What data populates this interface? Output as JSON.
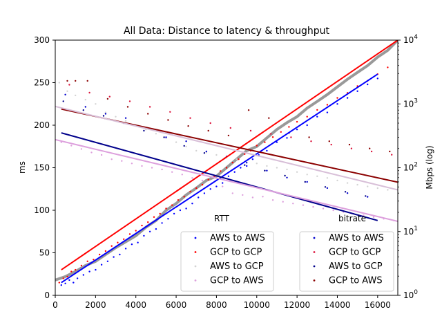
{
  "chart_data": {
    "type": "scatter",
    "title": "All Data: Distance to latency & throughput",
    "xlabel": "",
    "ylabel": "ms",
    "ylabel_right": "Mbps (log)",
    "xlim": [
      0,
      17000
    ],
    "ylim": [
      0,
      300
    ],
    "ylim_right": [
      1,
      10000
    ],
    "y_right_scale": "log",
    "x_ticks": [
      "0",
      "2000",
      "4000",
      "6000",
      "8000",
      "10000",
      "12000",
      "14000",
      "16000"
    ],
    "y_ticks": [
      "0",
      "50",
      "100",
      "150",
      "200",
      "250",
      "300"
    ],
    "y_right_ticks": [
      {
        "value": 1,
        "base": "10",
        "exp": "0"
      },
      {
        "value": 10,
        "base": "10",
        "exp": "1"
      },
      {
        "value": 100,
        "base": "10",
        "exp": "2"
      },
      {
        "value": 1000,
        "base": "10",
        "exp": "3"
      },
      {
        "value": 10000,
        "base": "10",
        "exp": "4"
      }
    ],
    "legends": [
      {
        "title": "RTT",
        "placement": "lower-center",
        "entries": [
          {
            "label": "AWS to AWS",
            "color": "#0000ff"
          },
          {
            "label": "GCP to GCP",
            "color": "#ff0000"
          },
          {
            "label": "AWS to GCP",
            "color": "#d3d3d3"
          },
          {
            "label": "GCP to AWS",
            "color": "#dda0dd"
          }
        ]
      },
      {
        "title": "bitrate",
        "placement": "lower-right",
        "entries": [
          {
            "label": "AWS to AWS",
            "color": "#0000cd"
          },
          {
            "label": "GCP to GCP",
            "color": "#dc143c"
          },
          {
            "label": "AWS to GCP",
            "color": "#00008b"
          },
          {
            "label": "GCP to AWS",
            "color": "#8b0000"
          }
        ]
      }
    ],
    "fit_lines": [
      {
        "color": "#0000ff",
        "axis": "left",
        "x": [
          300,
          16000
        ],
        "y": [
          15,
          260
        ]
      },
      {
        "color": "#ff0000",
        "axis": "left",
        "x": [
          300,
          17000
        ],
        "y": [
          30,
          300
        ]
      },
      {
        "color": "#00008b",
        "axis": "left",
        "x": [
          300,
          16000
        ],
        "y": [
          191,
          88
        ]
      },
      {
        "color": "#8b0000",
        "axis": "left",
        "x": [
          300,
          17000
        ],
        "y": [
          219,
          133
        ]
      },
      {
        "color": "#dda0dd",
        "axis": "left",
        "x": [
          0,
          17000
        ],
        "y": [
          183,
          87
        ]
      },
      {
        "color": "#d8bfd8",
        "axis": "left",
        "x": [
          0,
          17000
        ],
        "y": [
          222,
          124
        ]
      }
    ],
    "rtt_band": {
      "color": "#777777",
      "x": [
        0,
        500,
        1000,
        1500,
        2000,
        2500,
        3000,
        3500,
        4000,
        4500,
        5000,
        5500,
        6000,
        6500,
        7000,
        7500,
        8000,
        8500,
        9000,
        9500,
        10000,
        10500,
        11000,
        11500,
        12000,
        12500,
        13000,
        13500,
        14000,
        14500,
        15000,
        15500,
        16000,
        16500,
        17000
      ],
      "y": [
        18,
        22,
        28,
        35,
        40,
        48,
        56,
        63,
        70,
        80,
        88,
        100,
        108,
        118,
        126,
        135,
        140,
        150,
        160,
        170,
        175,
        185,
        195,
        203,
        210,
        220,
        228,
        236,
        245,
        254,
        262,
        270,
        280,
        288,
        300
      ]
    },
    "series": [
      {
        "name": "AWS to AWS",
        "kind": "rtt",
        "axis": "left",
        "color": "#0000ff",
        "x": [
          300,
          500,
          700,
          900,
          1100,
          1400,
          1700,
          2000,
          2300,
          2600,
          2900,
          3200,
          3500,
          3800,
          4100,
          4400,
          4700,
          5000,
          5300,
          5600,
          5900,
          6200,
          6500,
          6800,
          7100,
          7400,
          7700,
          8000,
          8300,
          8600,
          8900,
          9200,
          9500,
          9800,
          10100,
          10500,
          11000,
          11500,
          12000,
          12500,
          13000,
          13500,
          14000,
          14500,
          15000,
          15500,
          16000
        ],
        "y": [
          12,
          14,
          18,
          15,
          20,
          24,
          28,
          30,
          36,
          40,
          45,
          48,
          55,
          60,
          62,
          70,
          75,
          78,
          85,
          90,
          96,
          100,
          102,
          108,
          115,
          120,
          125,
          128,
          132,
          140,
          145,
          150,
          152,
          160,
          165,
          170,
          180,
          185,
          195,
          200,
          210,
          215,
          225,
          232,
          240,
          248,
          255
        ]
      },
      {
        "name": "GCP to GCP",
        "kind": "rtt",
        "axis": "left",
        "color": "#ff0000",
        "x": [
          200,
          400,
          600,
          800,
          1000,
          1300,
          1600,
          1900,
          2200,
          2500,
          2800,
          3100,
          3400,
          3700,
          4000,
          4300,
          4600,
          4900,
          5200,
          5500,
          5800,
          6100,
          6400,
          6700,
          7000,
          7300,
          7600,
          7900,
          8200,
          8500,
          8800,
          9100,
          9400,
          9700,
          10000,
          10400,
          10800,
          11200,
          11600,
          12000,
          12500,
          13000,
          13500,
          14000,
          14500,
          15000,
          15500,
          16000,
          16500
        ],
        "y": [
          15,
          20,
          22,
          28,
          30,
          35,
          40,
          42,
          48,
          52,
          58,
          62,
          66,
          72,
          76,
          82,
          86,
          92,
          96,
          102,
          106,
          112,
          116,
          122,
          126,
          130,
          136,
          140,
          146,
          150,
          156,
          160,
          166,
          170,
          176,
          180,
          186,
          192,
          198,
          204,
          210,
          218,
          224,
          232,
          238,
          246,
          252,
          260,
          268
        ]
      },
      {
        "name": "AWS to GCP",
        "kind": "rtt",
        "axis": "left",
        "color": "#d3d3d3",
        "x": [
          200,
          600,
          1000,
          1500,
          2000,
          2500,
          3000,
          3500,
          4000,
          4500,
          5000,
          5500,
          6000,
          6500,
          7000,
          7500,
          8000,
          8500,
          9000,
          9500,
          10000,
          10500,
          11000,
          11500,
          12000,
          12500,
          13000,
          13500,
          14000,
          14500,
          15000,
          15500,
          16000,
          16500
        ],
        "y": [
          250,
          240,
          235,
          230,
          225,
          215,
          210,
          205,
          200,
          195,
          190,
          185,
          180,
          175,
          170,
          168,
          165,
          162,
          160,
          158,
          155,
          152,
          150,
          148,
          145,
          142,
          140,
          138,
          135,
          132,
          130,
          128,
          126,
          124
        ]
      },
      {
        "name": "GCP to AWS",
        "kind": "rtt",
        "axis": "left",
        "color": "#dda0dd",
        "x": [
          300,
          800,
          1300,
          1800,
          2300,
          2800,
          3300,
          3800,
          4300,
          4800,
          5300,
          5800,
          6300,
          6800,
          7300,
          7800,
          8300,
          8800,
          9300,
          9800,
          10300,
          10800,
          11300,
          11800,
          12300,
          12800,
          13300,
          13800,
          14300,
          14800,
          15300,
          15800,
          16300,
          16800
        ],
        "y": [
          180,
          176,
          172,
          168,
          165,
          160,
          158,
          155,
          152,
          150,
          148,
          145,
          142,
          138,
          135,
          132,
          128,
          120,
          118,
          115,
          116,
          112,
          110,
          108,
          106,
          104,
          102,
          100,
          98,
          96,
          94,
          92,
          90,
          88
        ]
      },
      {
        "name": "AWS to AWS",
        "kind": "bitrate",
        "axis": "right",
        "color": "#0000cd",
        "x": [
          500,
          1500,
          2500,
          3500,
          4500,
          5500,
          6500,
          7500,
          8500,
          9500,
          10500,
          11500,
          12500,
          13500,
          14500,
          15500
        ],
        "y": [
          1400,
          900,
          700,
          600,
          420,
          300,
          260,
          180,
          150,
          120,
          90,
          70,
          60,
          48,
          40,
          35
        ]
      },
      {
        "name": "GCP to GCP",
        "kind": "bitrate",
        "axis": "right",
        "color": "#dc143c",
        "x": [
          700,
          1700,
          2700,
          3700,
          4700,
          5700,
          6700,
          7700,
          8700,
          9700,
          10700,
          11700,
          12700,
          13700,
          14700,
          15700,
          16700
        ],
        "y": [
          2000,
          1500,
          1300,
          1100,
          900,
          750,
          600,
          500,
          420,
          380,
          340,
          300,
          260,
          230,
          200,
          180,
          160
        ]
      },
      {
        "name": "AWS to GCP",
        "kind": "bitrate",
        "axis": "right",
        "color": "#00008b",
        "x": [
          400,
          1400,
          2400,
          3400,
          4400,
          5400,
          6400,
          7400,
          8400,
          9400,
          10400,
          11400,
          12400,
          13400,
          14400,
          15400
        ],
        "y": [
          1100,
          800,
          650,
          500,
          380,
          300,
          220,
          170,
          140,
          110,
          90,
          75,
          60,
          50,
          42,
          36
        ]
      },
      {
        "name": "GCP to AWS",
        "kind": "bitrate",
        "axis": "right",
        "color": "#8b0000",
        "x": [
          600,
          1000,
          1600,
          2600,
          3600,
          4600,
          5600,
          6600,
          7600,
          8600,
          9600,
          10600,
          11600,
          12600,
          13600,
          14600,
          15600,
          16600
        ],
        "y": [
          2300,
          2300,
          2300,
          1200,
          900,
          700,
          560,
          450,
          380,
          320,
          800,
          600,
          350,
          300,
          260,
          230,
          200,
          180
        ]
      }
    ]
  }
}
